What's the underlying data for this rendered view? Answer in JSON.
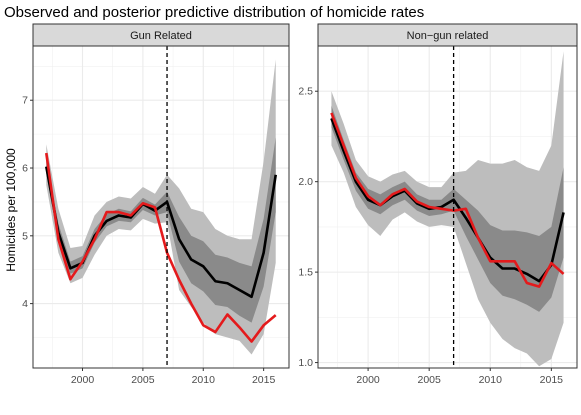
{
  "chart_data": {
    "type": "line",
    "title": "Observed and posterior predictive distribution of homicide rates",
    "ylabel": "Homicides per 100,000",
    "xlabel": "",
    "grid": true,
    "legend": "none",
    "colors": {
      "observed": "#e41a1c",
      "median": "#000000",
      "outer_band": "#bdbdbd",
      "inner_band": "#8a8a8a",
      "strip": "#d9d9d9",
      "vline": "#000000"
    },
    "x": [
      1997,
      1998,
      1999,
      2000,
      2001,
      2002,
      2003,
      2004,
      2005,
      2006,
      2007,
      2008,
      2009,
      2010,
      2011,
      2012,
      2013,
      2014,
      2015,
      2016
    ],
    "xlim": [
      1995.9,
      2017.1
    ],
    "x_ticks": [
      2000,
      2005,
      2010,
      2015
    ],
    "panels": [
      {
        "strip_label": "Gun Related",
        "ylim": [
          3.05,
          7.8
        ],
        "y_ticks": [
          4,
          5,
          6,
          7
        ],
        "vline_x": 2007,
        "observed": [
          6.22,
          4.95,
          4.36,
          4.62,
          4.95,
          5.35,
          5.35,
          5.3,
          5.48,
          5.42,
          4.75,
          4.35,
          4.0,
          3.68,
          3.58,
          3.84,
          3.65,
          3.44,
          3.68,
          3.83
        ],
        "median": [
          6.02,
          5.05,
          4.52,
          4.6,
          5.0,
          5.22,
          5.3,
          5.27,
          5.47,
          5.37,
          5.5,
          4.95,
          4.65,
          4.55,
          4.33,
          4.3,
          4.2,
          4.1,
          4.75,
          5.9
        ],
        "inner_low": [
          5.92,
          4.92,
          4.44,
          4.52,
          4.9,
          5.14,
          5.22,
          5.2,
          5.38,
          5.3,
          5.35,
          4.62,
          4.3,
          4.18,
          3.98,
          3.95,
          3.82,
          3.72,
          4.25,
          5.35
        ],
        "inner_high": [
          6.14,
          5.18,
          4.62,
          4.7,
          5.1,
          5.32,
          5.4,
          5.36,
          5.56,
          5.46,
          5.65,
          5.28,
          5.0,
          4.92,
          4.72,
          4.68,
          4.6,
          4.55,
          5.25,
          6.45
        ],
        "outer_low": [
          5.75,
          4.75,
          4.3,
          4.38,
          4.72,
          5.0,
          5.1,
          5.08,
          5.25,
          5.18,
          5.2,
          4.2,
          3.95,
          3.72,
          3.55,
          3.5,
          3.45,
          3.25,
          3.55,
          4.6
        ],
        "outer_high": [
          6.35,
          5.4,
          4.82,
          4.85,
          5.3,
          5.5,
          5.58,
          5.55,
          5.72,
          5.62,
          5.9,
          5.7,
          5.4,
          5.35,
          5.1,
          5.0,
          4.95,
          4.95,
          6.1,
          7.6
        ]
      },
      {
        "strip_label": "Non−gun related",
        "ylim": [
          0.97,
          2.75
        ],
        "y_ticks": [
          1.0,
          1.5,
          2.0,
          2.5
        ],
        "vline_x": 2007,
        "observed": [
          2.38,
          2.2,
          2.02,
          1.92,
          1.87,
          1.93,
          1.96,
          1.89,
          1.86,
          1.85,
          1.84,
          1.85,
          1.69,
          1.56,
          1.56,
          1.56,
          1.44,
          1.42,
          1.55,
          1.49
        ],
        "median": [
          2.35,
          2.17,
          2.0,
          1.9,
          1.87,
          1.92,
          1.95,
          1.88,
          1.85,
          1.86,
          1.9,
          1.8,
          1.69,
          1.58,
          1.52,
          1.52,
          1.49,
          1.45,
          1.54,
          1.83
        ],
        "inner_low": [
          2.3,
          2.12,
          1.95,
          1.85,
          1.82,
          1.87,
          1.9,
          1.84,
          1.81,
          1.82,
          1.84,
          1.7,
          1.57,
          1.44,
          1.37,
          1.35,
          1.32,
          1.28,
          1.36,
          1.58
        ],
        "inner_high": [
          2.42,
          2.23,
          2.05,
          1.96,
          1.93,
          1.97,
          2.0,
          1.93,
          1.9,
          1.9,
          1.96,
          1.9,
          1.84,
          1.76,
          1.73,
          1.73,
          1.72,
          1.7,
          1.75,
          2.08
        ],
        "outer_low": [
          2.2,
          2.05,
          1.86,
          1.76,
          1.7,
          1.79,
          1.83,
          1.78,
          1.75,
          1.76,
          1.75,
          1.55,
          1.35,
          1.22,
          1.13,
          1.08,
          1.05,
          0.98,
          1.02,
          1.22
        ],
        "outer_high": [
          2.5,
          2.32,
          2.12,
          2.03,
          2.0,
          2.04,
          2.06,
          2.0,
          1.97,
          1.97,
          2.05,
          2.06,
          2.12,
          2.1,
          2.1,
          2.12,
          2.08,
          2.06,
          2.2,
          2.72
        ]
      }
    ]
  }
}
